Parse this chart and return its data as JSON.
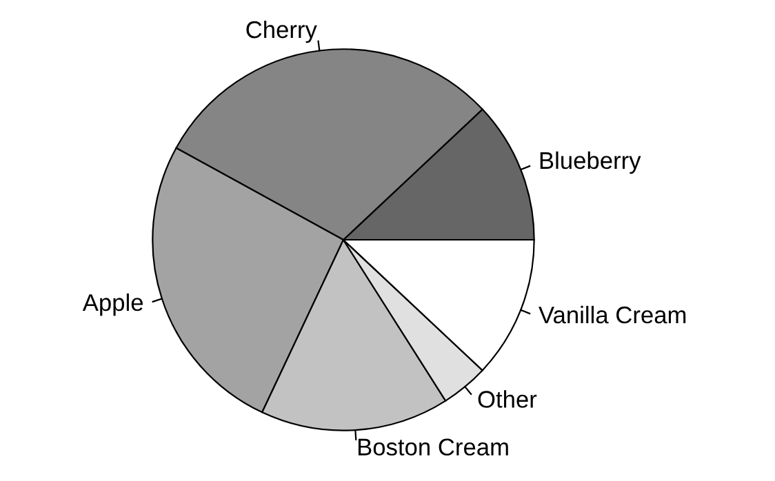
{
  "chart_data": {
    "type": "pie",
    "categories": [
      "Blueberry",
      "Cherry",
      "Apple",
      "Boston Cream",
      "Other",
      "Vanilla Cream"
    ],
    "values": [
      12,
      30,
      26,
      16,
      4,
      12
    ],
    "colors": [
      "#666666",
      "#858585",
      "#a3a3a3",
      "#c2c2c2",
      "#e0e0e0",
      "#ffffff"
    ]
  }
}
